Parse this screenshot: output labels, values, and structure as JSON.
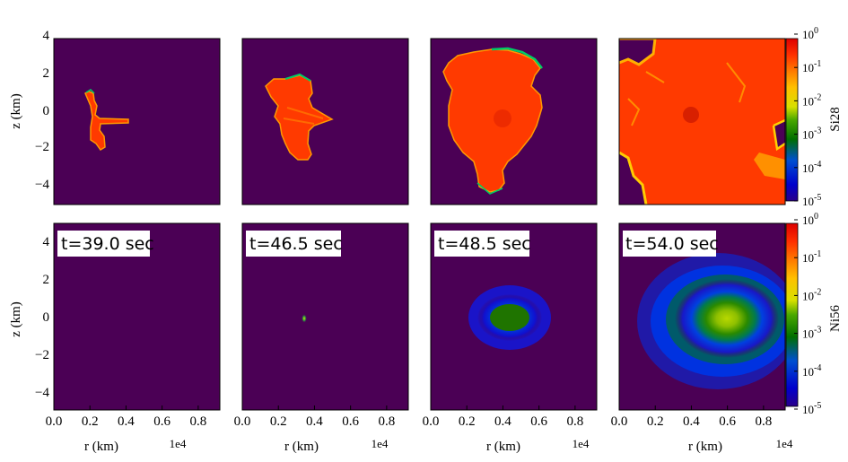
{
  "chart_data": {
    "type": "heatmap",
    "layout": {
      "rows": 2,
      "cols": 4
    },
    "x_axis": {
      "label": "r  (km)",
      "offset_text": "1e4",
      "ticks": [
        "0.0",
        "0.2",
        "0.4",
        "0.6",
        "0.8"
      ],
      "tick_values": [
        0,
        0.2,
        0.4,
        0.6,
        0.8
      ],
      "range": [
        0,
        0.92
      ]
    },
    "y_axis": {
      "label": "z  (km)",
      "ticks": [
        "4",
        "2",
        "0",
        "−2",
        "−4"
      ],
      "tick_values": [
        4,
        2,
        0,
        -2,
        -4
      ],
      "range_top": [
        -5.2,
        3.9
      ],
      "range_bottom": [
        -5,
        5
      ]
    },
    "rows": [
      {
        "quantity": "Si28",
        "colorbar": {
          "label": "Si28",
          "scale": "log",
          "tick_exponents": [
            "0",
            "-1",
            "-2",
            "-3",
            "-4",
            "-5"
          ],
          "range": [
            1e-05,
            1
          ]
        }
      },
      {
        "quantity": "Ni56",
        "colorbar": {
          "label": "Ni56",
          "scale": "log",
          "tick_exponents": [
            "0",
            "-1",
            "-2",
            "-3",
            "-4",
            "-5"
          ],
          "range": [
            1e-05,
            1
          ]
        }
      }
    ],
    "times": [
      "t=39.0 sec",
      "t=46.5 sec",
      "t=48.5 sec",
      "t=54.0 sec"
    ],
    "colormap": {
      "name": "prism-like",
      "stops": [
        "#4b0055",
        "#0000c8",
        "#1d7a00",
        "#e6e600",
        "#ff9900",
        "#ff3300",
        "#e60000"
      ]
    }
  }
}
